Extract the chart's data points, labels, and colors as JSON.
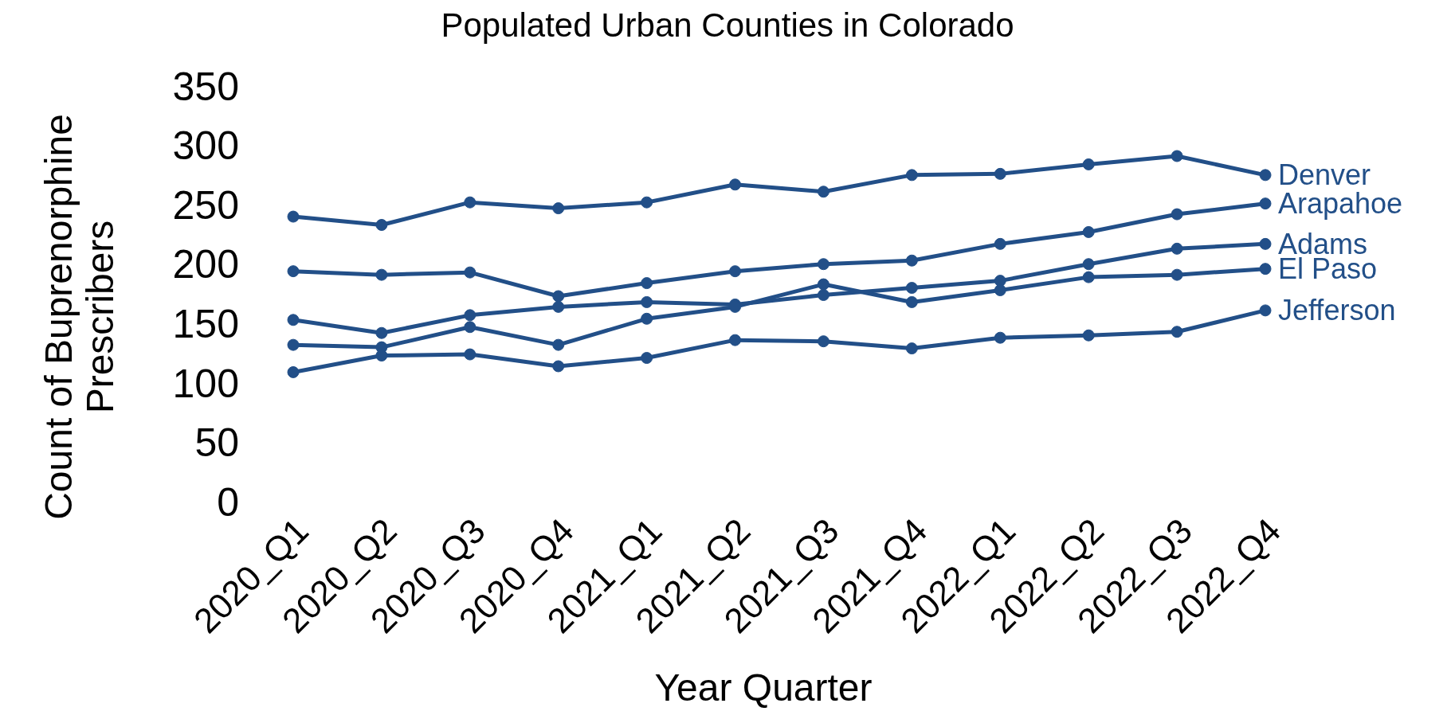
{
  "chart_data": {
    "type": "line",
    "title": "Populated Urban Counties in Colorado",
    "xlabel": "Year Quarter",
    "ylabel": "Count of Buprenorphine Prescribers",
    "categories": [
      "2020_Q1",
      "2020_Q2",
      "2020_Q3",
      "2020_Q4",
      "2021_Q1",
      "2021_Q2",
      "2021_Q3",
      "2021_Q4",
      "2022_Q1",
      "2022_Q2",
      "2022_Q3",
      "2022_Q4"
    ],
    "series": [
      {
        "name": "Denver",
        "color": "#224f88",
        "values": [
          240,
          233,
          252,
          247,
          252,
          267,
          261,
          275,
          276,
          284,
          291,
          275
        ]
      },
      {
        "name": "Arapahoe",
        "color": "#224f88",
        "values": [
          194,
          191,
          193,
          173,
          184,
          194,
          200,
          203,
          217,
          227,
          242,
          251
        ]
      },
      {
        "name": "Adams",
        "color": "#224f88",
        "values": [
          153,
          142,
          157,
          164,
          168,
          166,
          174,
          180,
          186,
          200,
          213,
          217
        ]
      },
      {
        "name": "El Paso",
        "color": "#224f88",
        "values": [
          132,
          130,
          147,
          132,
          154,
          164,
          183,
          168,
          178,
          189,
          191,
          196
        ]
      },
      {
        "name": "Jefferson",
        "color": "#224f88",
        "values": [
          109,
          123,
          124,
          114,
          121,
          136,
          135,
          129,
          138,
          140,
          143,
          161
        ]
      }
    ],
    "ylim": [
      0,
      350
    ],
    "yticks": [
      0,
      50,
      100,
      150,
      200,
      250,
      300,
      350
    ],
    "grid": false,
    "marker": "circle",
    "line_style": "solid"
  }
}
